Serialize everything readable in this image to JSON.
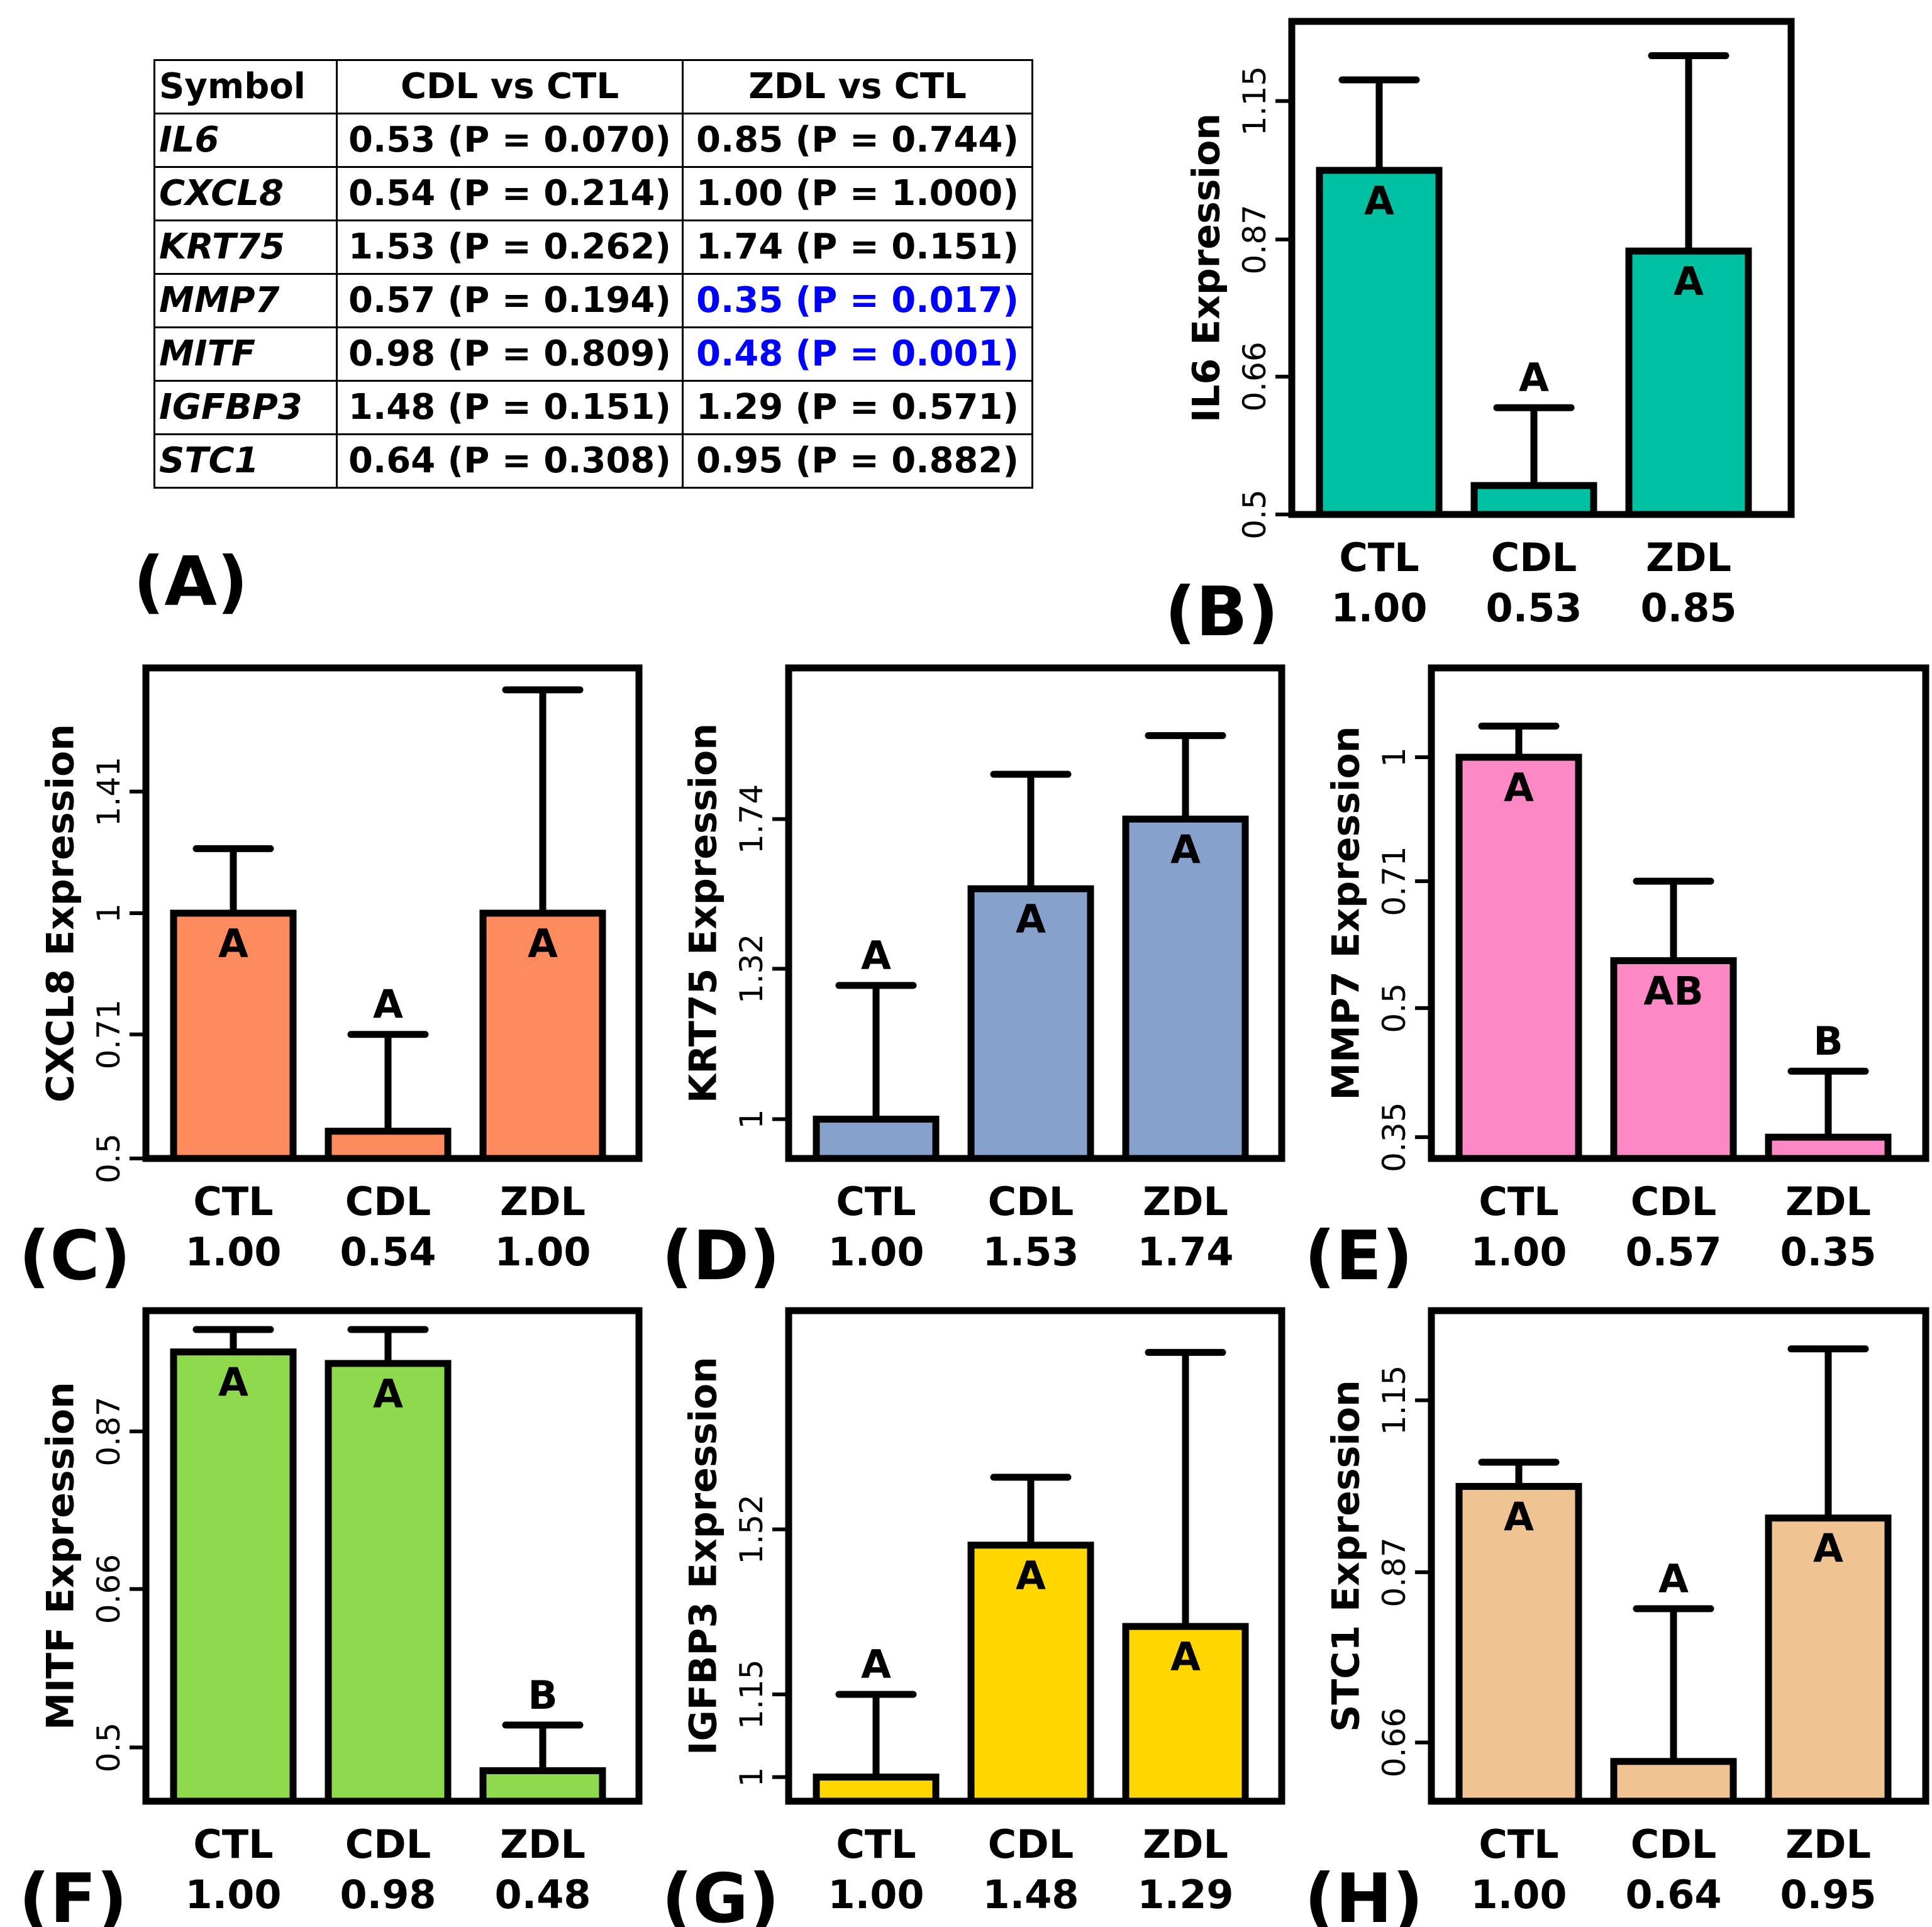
{
  "table": {
    "panel_label": "(A)",
    "headers": [
      "Symbol",
      "CDL vs CTL",
      "ZDL vs CTL"
    ],
    "rows": [
      {
        "symbol": "IL6",
        "cdl": "0.53 (P = 0.070)",
        "zdl": "0.85 (P = 0.744)",
        "zdl_highlight": false
      },
      {
        "symbol": "CXCL8",
        "cdl": "0.54 (P = 0.214)",
        "zdl": "1.00 (P = 1.000)",
        "zdl_highlight": false
      },
      {
        "symbol": "KRT75",
        "cdl": "1.53 (P = 0.262)",
        "zdl": "1.74 (P = 0.151)",
        "zdl_highlight": false
      },
      {
        "symbol": "MMP7",
        "cdl": "0.57 (P = 0.194)",
        "zdl": "0.35 (P = 0.017)",
        "zdl_highlight": true
      },
      {
        "symbol": "MITF",
        "cdl": "0.98 (P = 0.809)",
        "zdl": "0.48 (P = 0.001)",
        "zdl_highlight": true
      },
      {
        "symbol": "IGFBP3",
        "cdl": "1.48 (P = 0.151)",
        "zdl": "1.29 (P = 0.571)",
        "zdl_highlight": false
      },
      {
        "symbol": "STC1",
        "cdl": "0.64 (P = 0.308)",
        "zdl": "0.95 (P = 0.882)",
        "zdl_highlight": false
      }
    ],
    "highlight_color": "#0000ff"
  },
  "chart_data": [
    {
      "panel": "(B)",
      "type": "bar",
      "ylabel": "IL6 Expression",
      "color": "#00c0a2",
      "categories": [
        "CTL",
        "CDL",
        "ZDL"
      ],
      "value_labels": [
        "1.00",
        "0.53",
        "0.85"
      ],
      "values": [
        1.0,
        0.53,
        0.85
      ],
      "error_upper": [
        1.2,
        0.62,
        1.26
      ],
      "letters": [
        "A",
        "A",
        "A"
      ],
      "yticks": [
        "0.5",
        "0.66",
        "0.87",
        "1.15"
      ],
      "ylim": [
        0.5,
        1.35
      ]
    },
    {
      "panel": "(C)",
      "type": "bar",
      "ylabel": "CXCL8 Expression",
      "color": "#fd8b5d",
      "categories": [
        "CTL",
        "CDL",
        "ZDL"
      ],
      "value_labels": [
        "1.00",
        "0.54",
        "1.00"
      ],
      "values": [
        1.0,
        0.54,
        1.0
      ],
      "error_upper": [
        1.2,
        0.71,
        1.88
      ],
      "letters": [
        "A",
        "A",
        "A"
      ],
      "yticks": [
        "0.5",
        "0.71",
        "1",
        "1.41"
      ],
      "ylim": [
        0.5,
        2.0
      ]
    },
    {
      "panel": "(D)",
      "type": "bar",
      "ylabel": "KRT75 Expression",
      "color": "#86a1cc",
      "categories": [
        "CTL",
        "CDL",
        "ZDL"
      ],
      "value_labels": [
        "1.00",
        "1.53",
        "1.74"
      ],
      "values": [
        1.0,
        1.53,
        1.74
      ],
      "error_upper": [
        1.28,
        1.89,
        2.03
      ],
      "letters": [
        "A",
        "A",
        "A"
      ],
      "yticks": [
        "1",
        "1.32",
        "1.74"
      ],
      "ylim": [
        0.93,
        2.3
      ]
    },
    {
      "panel": "(E)",
      "type": "bar",
      "ylabel": "MMP7 Expression",
      "color": "#fc88c6",
      "categories": [
        "CTL",
        "CDL",
        "ZDL"
      ],
      "value_labels": [
        "1.00",
        "0.57",
        "0.35"
      ],
      "values": [
        1.0,
        0.57,
        0.35
      ],
      "error_upper": [
        1.09,
        0.71,
        0.42
      ],
      "letters": [
        "A",
        "AB",
        "B"
      ],
      "yticks": [
        "0.35",
        "0.5",
        "0.71",
        "1"
      ],
      "ylim": [
        0.33,
        1.28
      ]
    },
    {
      "panel": "(F)",
      "type": "bar",
      "ylabel": "MITF Expression",
      "color": "#8ed94c",
      "categories": [
        "CTL",
        "CDL",
        "ZDL"
      ],
      "value_labels": [
        "1.00",
        "0.98",
        "0.48"
      ],
      "values": [
        1.0,
        0.98,
        0.48
      ],
      "error_upper": [
        1.04,
        1.04,
        0.52
      ],
      "letters": [
        "A",
        "A",
        "B"
      ],
      "yticks": [
        "0.5",
        "0.66",
        "0.87"
      ],
      "ylim": [
        0.455,
        1.075
      ]
    },
    {
      "panel": "(G)",
      "type": "bar",
      "ylabel": "IGFBP3 Expression",
      "color": "#ffd700",
      "categories": [
        "CTL",
        "CDL",
        "ZDL"
      ],
      "value_labels": [
        "1.00",
        "1.48",
        "1.29"
      ],
      "values": [
        1.0,
        1.48,
        1.29
      ],
      "error_upper": [
        1.15,
        1.66,
        2.05
      ],
      "letters": [
        "A",
        "A",
        "A"
      ],
      "yticks": [
        "1",
        "1.15",
        "1.52"
      ],
      "ylim": [
        0.96,
        2.2
      ]
    },
    {
      "panel": "(H)",
      "type": "bar",
      "ylabel": "STC1 Expression",
      "color": "#f0c492",
      "categories": [
        "CTL",
        "CDL",
        "ZDL"
      ],
      "value_labels": [
        "1.00",
        "0.64",
        "0.95"
      ],
      "values": [
        1.0,
        0.64,
        0.95
      ],
      "error_upper": [
        1.04,
        0.82,
        1.25
      ],
      "letters": [
        "A",
        "A",
        "A"
      ],
      "yticks": [
        "0.66",
        "0.87",
        "1.15"
      ],
      "ylim": [
        0.6,
        1.33
      ]
    }
  ]
}
